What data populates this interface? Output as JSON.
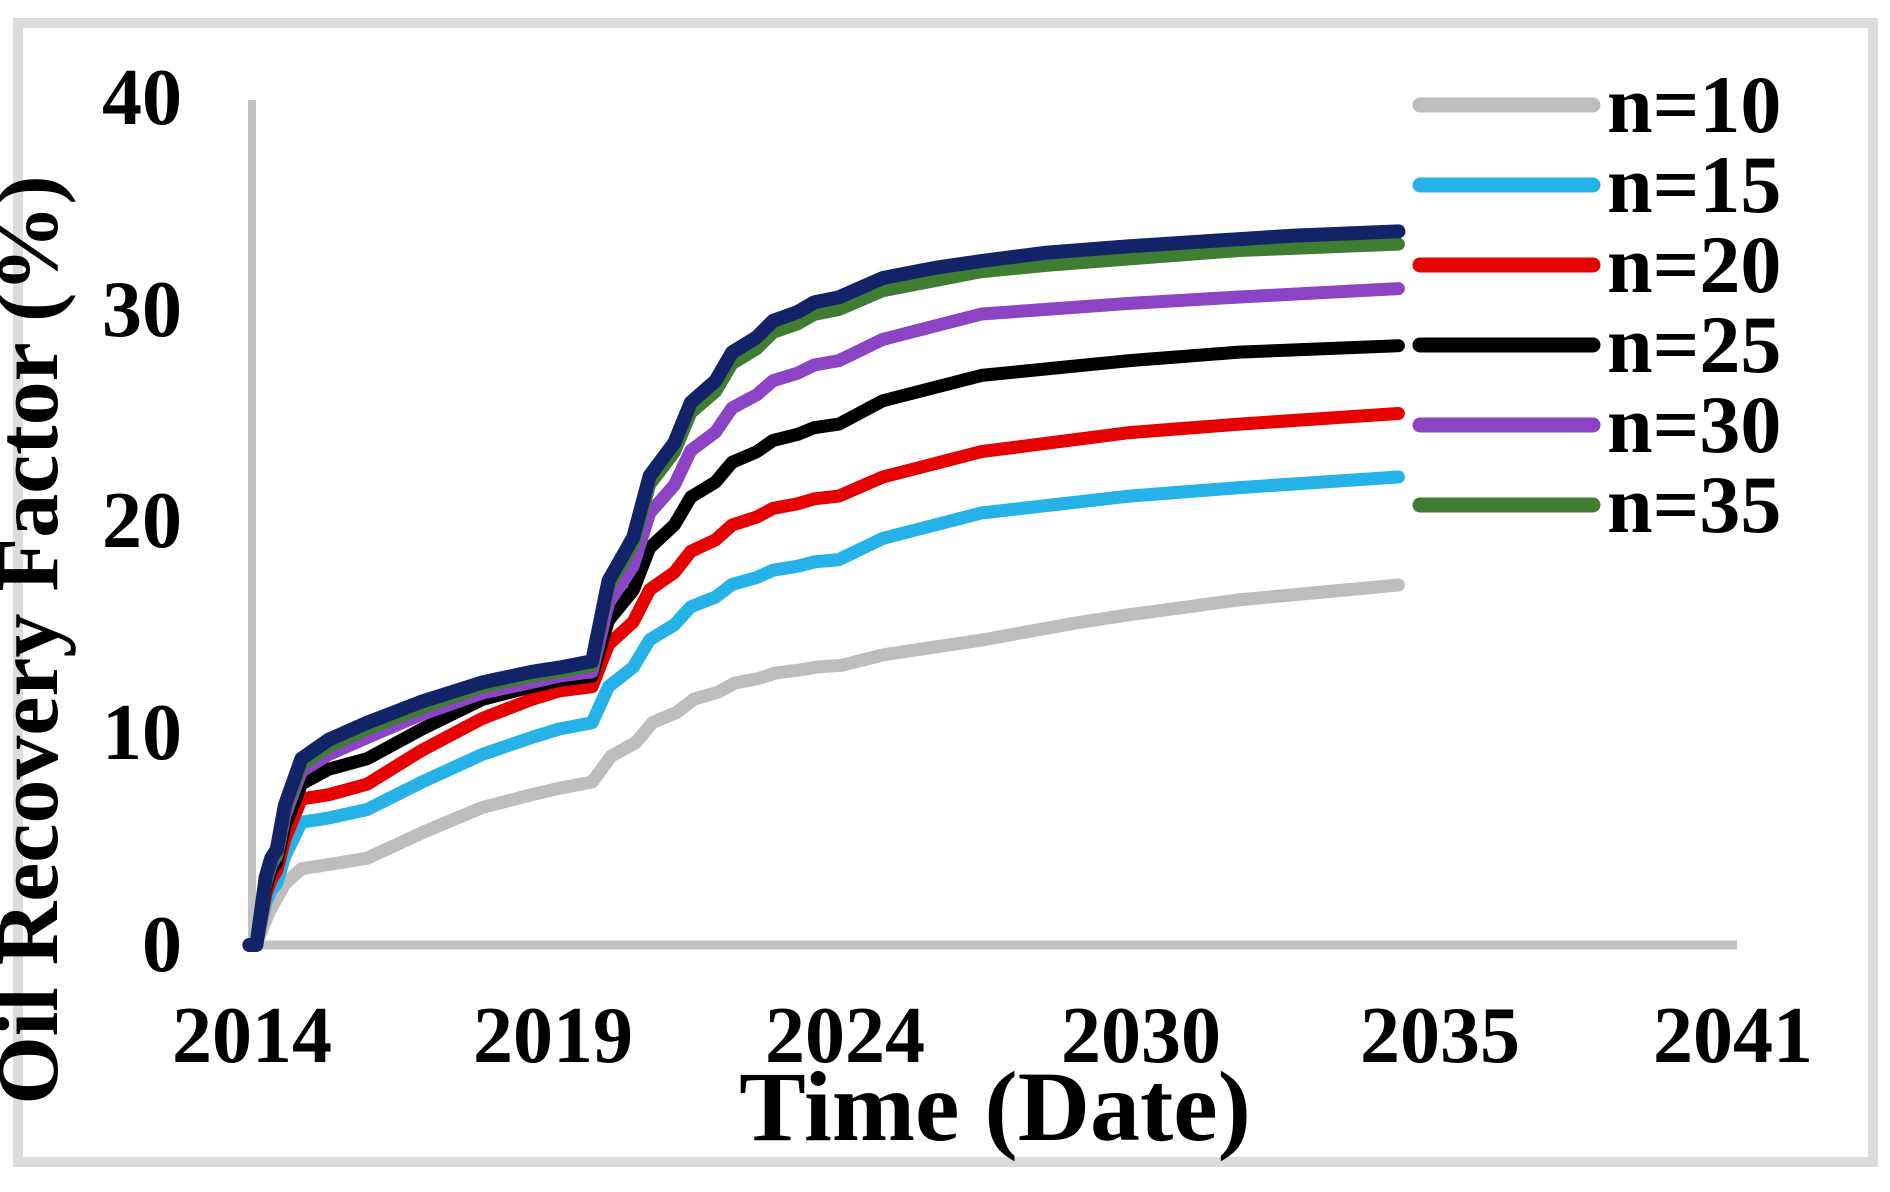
{
  "chart_data": {
    "type": "line",
    "title": "",
    "xlabel": "Time (Date)",
    "ylabel": "Oil Recovery Factor (%)",
    "xlim": [
      2014,
      2041
    ],
    "ylim": [
      0,
      40
    ],
    "grid": false,
    "legend_position": "top-right",
    "x_tick_labels": [
      "2014",
      "2019",
      "2024",
      "2030",
      "2035",
      "2041"
    ],
    "y_tick_labels": [
      "40",
      "30",
      "20",
      "10",
      "0"
    ],
    "legend": [
      {
        "label": "n=10",
        "color": "#bdbdbd"
      },
      {
        "label": "n=15",
        "color": "#24b2e8"
      },
      {
        "label": "n=20",
        "color": "#e60000"
      },
      {
        "label": "n=25",
        "color": "#000000"
      },
      {
        "label": "n=30",
        "color": "#8c44c4"
      },
      {
        "label": "n=35",
        "color": "#3e7d32"
      }
    ],
    "axis_color": "#c2c2c2",
    "border_color": "#dcdcdc",
    "series": [
      {
        "id": "n10",
        "label": "n=10",
        "color": "#bdbdbd",
        "width": 13,
        "points": [
          [
            2014.05,
            0
          ],
          [
            2014.15,
            0.5
          ],
          [
            2014.3,
            1.5
          ],
          [
            2014.45,
            2.2
          ],
          [
            2014.6,
            2.9
          ],
          [
            2014.9,
            3.6
          ],
          [
            2015.4,
            3.8
          ],
          [
            2016.1,
            4.1
          ],
          [
            2017.1,
            5.3
          ],
          [
            2018.2,
            6.5
          ],
          [
            2019.1,
            7.1
          ],
          [
            2019.6,
            7.4
          ],
          [
            2020.2,
            7.7
          ],
          [
            2020.55,
            8.92
          ],
          [
            2021.0,
            9.57
          ],
          [
            2021.3,
            10.5
          ],
          [
            2021.75,
            11.0
          ],
          [
            2022.05,
            11.61
          ],
          [
            2022.5,
            11.94
          ],
          [
            2022.8,
            12.37
          ],
          [
            2023.25,
            12.6
          ],
          [
            2023.55,
            12.85
          ],
          [
            2024.0,
            12.99
          ],
          [
            2024.3,
            13.13
          ],
          [
            2024.75,
            13.21
          ],
          [
            2025.5,
            13.7
          ],
          [
            2027.3,
            14.4
          ],
          [
            2029.0,
            15.2
          ],
          [
            2030.0,
            15.6
          ],
          [
            2032.0,
            16.3
          ],
          [
            2034.9,
            17.0
          ]
        ]
      },
      {
        "id": "n15",
        "label": "n=15",
        "color": "#24b2e8",
        "width": 13,
        "points": [
          [
            2014.0,
            0
          ],
          [
            2014.08,
            0
          ],
          [
            2014.25,
            2.0
          ],
          [
            2014.35,
            2.6
          ],
          [
            2014.45,
            2.9
          ],
          [
            2014.6,
            4.2
          ],
          [
            2014.9,
            5.8
          ],
          [
            2015.4,
            6.0
          ],
          [
            2016.1,
            6.4
          ],
          [
            2017.1,
            7.7
          ],
          [
            2018.2,
            9.0
          ],
          [
            2019.1,
            9.8
          ],
          [
            2019.6,
            10.2
          ],
          [
            2020.2,
            10.5
          ],
          [
            2020.5,
            12.2
          ],
          [
            2020.95,
            13.12
          ],
          [
            2021.25,
            14.42
          ],
          [
            2021.7,
            15.12
          ],
          [
            2022.0,
            15.97
          ],
          [
            2022.45,
            16.43
          ],
          [
            2022.75,
            17.03
          ],
          [
            2023.2,
            17.35
          ],
          [
            2023.5,
            17.7
          ],
          [
            2023.95,
            17.89
          ],
          [
            2024.25,
            18.09
          ],
          [
            2024.7,
            18.2
          ],
          [
            2025.5,
            19.2
          ],
          [
            2027.3,
            20.4
          ],
          [
            2030.0,
            21.2
          ],
          [
            2032.0,
            21.6
          ],
          [
            2034.9,
            22.1
          ]
        ]
      },
      {
        "id": "n20",
        "label": "n=20",
        "color": "#e60000",
        "width": 13,
        "points": [
          [
            2014.0,
            0
          ],
          [
            2014.08,
            0
          ],
          [
            2014.25,
            2.4
          ],
          [
            2014.35,
            3.1
          ],
          [
            2014.45,
            3.5
          ],
          [
            2014.6,
            5.0
          ],
          [
            2014.9,
            6.9
          ],
          [
            2015.4,
            7.1
          ],
          [
            2016.1,
            7.6
          ],
          [
            2017.1,
            9.2
          ],
          [
            2018.2,
            10.7
          ],
          [
            2019.1,
            11.6
          ],
          [
            2019.6,
            12.0
          ],
          [
            2020.2,
            12.2
          ],
          [
            2020.5,
            14.19
          ],
          [
            2020.95,
            15.26
          ],
          [
            2021.25,
            16.78
          ],
          [
            2021.7,
            17.6
          ],
          [
            2022.0,
            18.59
          ],
          [
            2022.45,
            19.13
          ],
          [
            2022.75,
            19.83
          ],
          [
            2023.2,
            20.21
          ],
          [
            2023.5,
            20.62
          ],
          [
            2023.95,
            20.84
          ],
          [
            2024.25,
            21.07
          ],
          [
            2024.7,
            21.2
          ],
          [
            2025.5,
            22.1
          ],
          [
            2027.3,
            23.3
          ],
          [
            2030.0,
            24.2
          ],
          [
            2032.0,
            24.6
          ],
          [
            2034.9,
            25.1
          ]
        ]
      },
      {
        "id": "n25",
        "label": "n=25",
        "color": "#000000",
        "width": 13,
        "points": [
          [
            2014.0,
            0
          ],
          [
            2014.08,
            0
          ],
          [
            2014.25,
            2.7
          ],
          [
            2014.35,
            3.5
          ],
          [
            2014.45,
            3.9
          ],
          [
            2014.6,
            5.6
          ],
          [
            2014.9,
            7.6
          ],
          [
            2015.4,
            8.3
          ],
          [
            2016.1,
            8.8
          ],
          [
            2017.1,
            10.2
          ],
          [
            2018.2,
            11.6
          ],
          [
            2019.1,
            12.2
          ],
          [
            2019.6,
            12.5
          ],
          [
            2020.2,
            12.7
          ],
          [
            2020.5,
            15.33
          ],
          [
            2020.95,
            16.75
          ],
          [
            2021.25,
            18.76
          ],
          [
            2021.7,
            19.84
          ],
          [
            2022.0,
            21.15
          ],
          [
            2022.45,
            21.86
          ],
          [
            2022.75,
            22.79
          ],
          [
            2023.2,
            23.29
          ],
          [
            2023.5,
            23.83
          ],
          [
            2023.95,
            24.12
          ],
          [
            2024.25,
            24.43
          ],
          [
            2024.7,
            24.6
          ],
          [
            2025.5,
            25.7
          ],
          [
            2027.3,
            26.9
          ],
          [
            2030.0,
            27.6
          ],
          [
            2032.0,
            28.0
          ],
          [
            2034.9,
            28.3
          ]
        ]
      },
      {
        "id": "n30",
        "label": "n=30",
        "color": "#8c44c4",
        "width": 13,
        "points": [
          [
            2014.0,
            0
          ],
          [
            2014.08,
            0
          ],
          [
            2014.25,
            2.9
          ],
          [
            2014.35,
            3.8
          ],
          [
            2014.45,
            4.2
          ],
          [
            2014.6,
            6.1
          ],
          [
            2014.9,
            8.2
          ],
          [
            2015.4,
            9.0
          ],
          [
            2016.1,
            9.8
          ],
          [
            2017.1,
            10.9
          ],
          [
            2018.2,
            11.9
          ],
          [
            2019.1,
            12.4
          ],
          [
            2019.6,
            12.7
          ],
          [
            2020.2,
            12.9
          ],
          [
            2020.5,
            16.15
          ],
          [
            2020.95,
            17.9
          ],
          [
            2021.25,
            20.4
          ],
          [
            2021.7,
            21.72
          ],
          [
            2022.0,
            23.35
          ],
          [
            2022.45,
            24.22
          ],
          [
            2022.75,
            25.36
          ],
          [
            2023.2,
            25.98
          ],
          [
            2023.5,
            26.65
          ],
          [
            2023.95,
            27.01
          ],
          [
            2024.25,
            27.39
          ],
          [
            2024.7,
            27.6
          ],
          [
            2025.5,
            28.6
          ],
          [
            2027.3,
            29.8
          ],
          [
            2030.0,
            30.3
          ],
          [
            2032.0,
            30.6
          ],
          [
            2034.9,
            31.0
          ]
        ]
      },
      {
        "id": "n35",
        "label": "n=35",
        "color": "#3e7d32",
        "width": 13,
        "points": [
          [
            2014.0,
            0
          ],
          [
            2014.08,
            0
          ],
          [
            2014.25,
            3.0
          ],
          [
            2014.35,
            3.9
          ],
          [
            2014.45,
            4.3
          ],
          [
            2014.6,
            6.3
          ],
          [
            2014.9,
            8.5
          ],
          [
            2015.4,
            9.4
          ],
          [
            2016.1,
            10.2
          ],
          [
            2017.1,
            11.2
          ],
          [
            2018.2,
            12.2
          ],
          [
            2019.1,
            12.7
          ],
          [
            2019.6,
            12.9
          ],
          [
            2020.2,
            13.2
          ],
          [
            2020.5,
            16.91
          ],
          [
            2020.95,
            18.91
          ],
          [
            2021.25,
            21.75
          ],
          [
            2021.7,
            23.28
          ],
          [
            2022.0,
            25.14
          ],
          [
            2022.45,
            26.14
          ],
          [
            2022.75,
            27.45
          ],
          [
            2023.2,
            28.16
          ],
          [
            2023.5,
            28.93
          ],
          [
            2023.95,
            29.34
          ],
          [
            2024.25,
            29.78
          ],
          [
            2024.7,
            30.01
          ],
          [
            2025.5,
            30.9
          ],
          [
            2027.3,
            31.8
          ],
          [
            2028.5,
            32.1
          ],
          [
            2030.0,
            32.4
          ],
          [
            2032.0,
            32.8
          ],
          [
            2034.9,
            33.1
          ]
        ]
      },
      {
        "id": "unlabeled-navy",
        "label": "",
        "color": "#132368",
        "width": 14,
        "points": [
          [
            2013.95,
            0
          ],
          [
            2014.08,
            0
          ],
          [
            2014.25,
            3.2
          ],
          [
            2014.35,
            4.1
          ],
          [
            2014.45,
            4.5
          ],
          [
            2014.6,
            6.6
          ],
          [
            2014.9,
            8.8
          ],
          [
            2015.4,
            9.7
          ],
          [
            2016.1,
            10.5
          ],
          [
            2017.1,
            11.5
          ],
          [
            2018.2,
            12.4
          ],
          [
            2019.1,
            12.9
          ],
          [
            2019.6,
            13.1
          ],
          [
            2020.2,
            13.4
          ],
          [
            2020.5,
            17.2
          ],
          [
            2020.95,
            19.25
          ],
          [
            2021.25,
            22.16
          ],
          [
            2021.7,
            23.72
          ],
          [
            2022.0,
            25.62
          ],
          [
            2022.45,
            26.64
          ],
          [
            2022.75,
            27.98
          ],
          [
            2023.2,
            28.7
          ],
          [
            2023.5,
            29.48
          ],
          [
            2023.95,
            29.9
          ],
          [
            2024.25,
            30.35
          ],
          [
            2024.7,
            30.59
          ],
          [
            2025.5,
            31.5
          ],
          [
            2026.5,
            32.0
          ],
          [
            2027.3,
            32.3
          ],
          [
            2028.5,
            32.7
          ],
          [
            2030.0,
            33.0
          ],
          [
            2031.5,
            33.25
          ],
          [
            2033.0,
            33.5
          ],
          [
            2034.9,
            33.7
          ]
        ]
      }
    ]
  }
}
